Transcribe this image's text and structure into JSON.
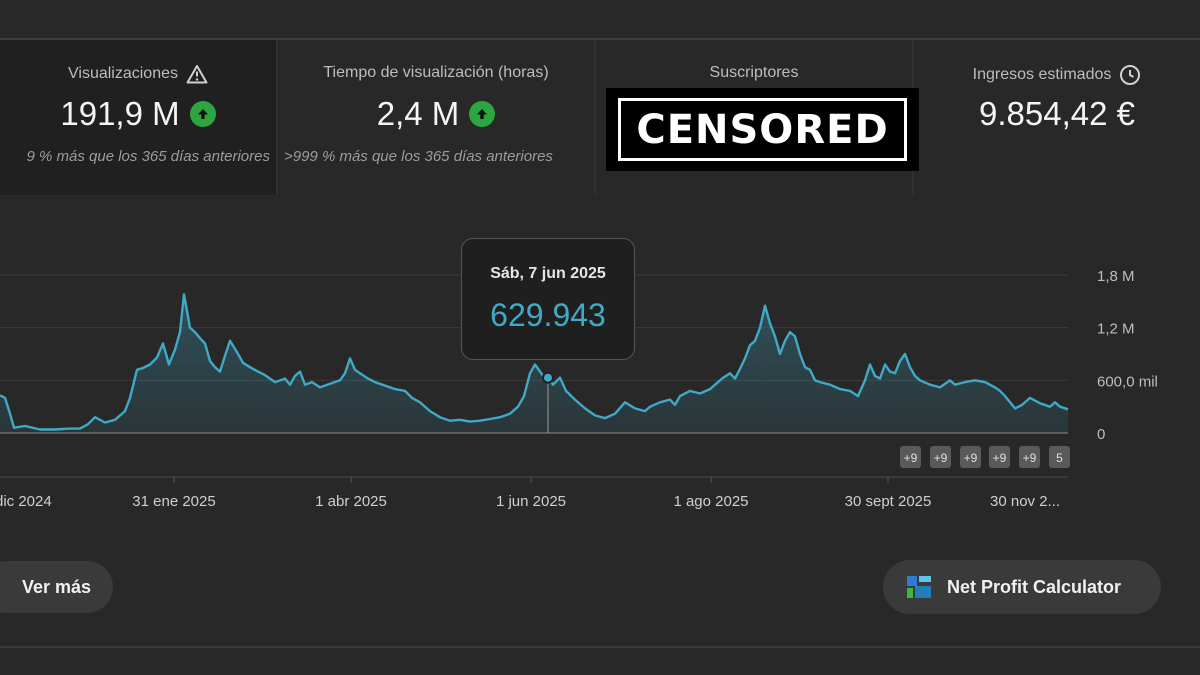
{
  "metrics": [
    {
      "label": "Visualizaciones",
      "value": "191,9 M",
      "sub": "9 % más que los 365 días anteriores",
      "trend": "up"
    },
    {
      "label": "Tiempo de visualización (horas)",
      "value": "2,4 M",
      "sub": ">999 % más que los 365 días anteriores",
      "trend": "up"
    },
    {
      "label": "Suscriptores",
      "overlay": "CENSORED"
    },
    {
      "label": "Ingresos estimados",
      "value": "9.854,42 €"
    }
  ],
  "tooltip": {
    "date": "Sáb, 7 jun 2025",
    "value": "629.943"
  },
  "chart_data": {
    "type": "area",
    "x_tick_labels": [
      "dic 2024",
      "31 ene 2025",
      "1 abr 2025",
      "1 jun 2025",
      "1 ago 2025",
      "30 sept 2025",
      "30 nov 2..."
    ],
    "y_tick_labels": [
      "1,8 M",
      "1,2 M",
      "600,0 mil",
      "0"
    ],
    "ylim": [
      0,
      1800000
    ],
    "series": [
      {
        "name": "Visualizaciones",
        "color": "#3fa9c6",
        "points": [
          [
            0,
            0.43
          ],
          [
            5,
            0.4
          ],
          [
            10,
            0.22
          ],
          [
            14,
            0.06
          ],
          [
            25,
            0.08
          ],
          [
            40,
            0.04
          ],
          [
            55,
            0.04
          ],
          [
            70,
            0.05
          ],
          [
            80,
            0.05
          ],
          [
            88,
            0.1
          ],
          [
            95,
            0.18
          ],
          [
            105,
            0.12
          ],
          [
            115,
            0.15
          ],
          [
            125,
            0.25
          ],
          [
            130,
            0.4
          ],
          [
            137,
            0.72
          ],
          [
            143,
            0.74
          ],
          [
            150,
            0.78
          ],
          [
            157,
            0.86
          ],
          [
            163,
            1.02
          ],
          [
            169,
            0.78
          ],
          [
            175,
            0.95
          ],
          [
            180,
            1.15
          ],
          [
            184,
            1.58
          ],
          [
            190,
            1.2
          ],
          [
            195,
            1.15
          ],
          [
            200,
            1.08
          ],
          [
            205,
            1.02
          ],
          [
            210,
            0.82
          ],
          [
            215,
            0.75
          ],
          [
            220,
            0.7
          ],
          [
            225,
            0.88
          ],
          [
            230,
            1.05
          ],
          [
            237,
            0.92
          ],
          [
            243,
            0.8
          ],
          [
            250,
            0.75
          ],
          [
            258,
            0.7
          ],
          [
            265,
            0.66
          ],
          [
            275,
            0.58
          ],
          [
            285,
            0.62
          ],
          [
            290,
            0.55
          ],
          [
            295,
            0.65
          ],
          [
            300,
            0.7
          ],
          [
            305,
            0.55
          ],
          [
            312,
            0.58
          ],
          [
            320,
            0.52
          ],
          [
            330,
            0.56
          ],
          [
            340,
            0.6
          ],
          [
            345,
            0.68
          ],
          [
            350,
            0.85
          ],
          [
            355,
            0.72
          ],
          [
            360,
            0.68
          ],
          [
            368,
            0.62
          ],
          [
            375,
            0.58
          ],
          [
            385,
            0.54
          ],
          [
            395,
            0.5
          ],
          [
            405,
            0.48
          ],
          [
            412,
            0.4
          ],
          [
            420,
            0.35
          ],
          [
            430,
            0.25
          ],
          [
            440,
            0.18
          ],
          [
            450,
            0.14
          ],
          [
            460,
            0.15
          ],
          [
            470,
            0.13
          ],
          [
            480,
            0.14
          ],
          [
            490,
            0.16
          ],
          [
            500,
            0.18
          ],
          [
            510,
            0.22
          ],
          [
            518,
            0.3
          ],
          [
            524,
            0.42
          ],
          [
            530,
            0.68
          ],
          [
            535,
            0.78
          ],
          [
            540,
            0.7
          ],
          [
            545,
            0.62
          ],
          [
            548,
            0.63
          ],
          [
            553,
            0.55
          ],
          [
            560,
            0.63
          ],
          [
            566,
            0.48
          ],
          [
            575,
            0.38
          ],
          [
            585,
            0.28
          ],
          [
            595,
            0.2
          ],
          [
            605,
            0.17
          ],
          [
            615,
            0.22
          ],
          [
            625,
            0.35
          ],
          [
            635,
            0.28
          ],
          [
            645,
            0.25
          ],
          [
            650,
            0.3
          ],
          [
            660,
            0.35
          ],
          [
            670,
            0.38
          ],
          [
            675,
            0.32
          ],
          [
            680,
            0.42
          ],
          [
            690,
            0.48
          ],
          [
            700,
            0.45
          ],
          [
            710,
            0.5
          ],
          [
            715,
            0.55
          ],
          [
            722,
            0.62
          ],
          [
            730,
            0.68
          ],
          [
            735,
            0.62
          ],
          [
            740,
            0.73
          ],
          [
            745,
            0.85
          ],
          [
            750,
            1.0
          ],
          [
            755,
            1.05
          ],
          [
            760,
            1.2
          ],
          [
            765,
            1.45
          ],
          [
            770,
            1.25
          ],
          [
            775,
            1.1
          ],
          [
            780,
            0.9
          ],
          [
            785,
            1.05
          ],
          [
            790,
            1.15
          ],
          [
            795,
            1.1
          ],
          [
            800,
            0.9
          ],
          [
            805,
            0.75
          ],
          [
            810,
            0.72
          ],
          [
            815,
            0.6
          ],
          [
            820,
            0.58
          ],
          [
            830,
            0.55
          ],
          [
            840,
            0.5
          ],
          [
            850,
            0.48
          ],
          [
            858,
            0.42
          ],
          [
            865,
            0.6
          ],
          [
            870,
            0.78
          ],
          [
            875,
            0.65
          ],
          [
            880,
            0.62
          ],
          [
            885,
            0.78
          ],
          [
            890,
            0.7
          ],
          [
            895,
            0.68
          ],
          [
            900,
            0.82
          ],
          [
            905,
            0.9
          ],
          [
            910,
            0.75
          ],
          [
            915,
            0.65
          ],
          [
            920,
            0.6
          ],
          [
            930,
            0.55
          ],
          [
            940,
            0.52
          ],
          [
            950,
            0.6
          ],
          [
            955,
            0.55
          ],
          [
            965,
            0.58
          ],
          [
            975,
            0.6
          ],
          [
            985,
            0.58
          ],
          [
            995,
            0.52
          ],
          [
            1000,
            0.48
          ],
          [
            1005,
            0.42
          ],
          [
            1010,
            0.35
          ],
          [
            1015,
            0.28
          ],
          [
            1022,
            0.32
          ],
          [
            1030,
            0.4
          ],
          [
            1040,
            0.34
          ],
          [
            1050,
            0.3
          ],
          [
            1055,
            0.35
          ],
          [
            1060,
            0.3
          ],
          [
            1068,
            0.27
          ]
        ]
      }
    ],
    "highlight": {
      "label": "Sáb, 7 jun 2025",
      "value": 629943
    },
    "badges": [
      "+9",
      "+9",
      "+9",
      "+9",
      "+9",
      "5"
    ]
  },
  "buttons": {
    "ver_mas": "Ver más",
    "net_profit": "Net Profit Calculator"
  },
  "colors": {
    "accent": "#3fa9c6",
    "up": "#2ba640"
  }
}
